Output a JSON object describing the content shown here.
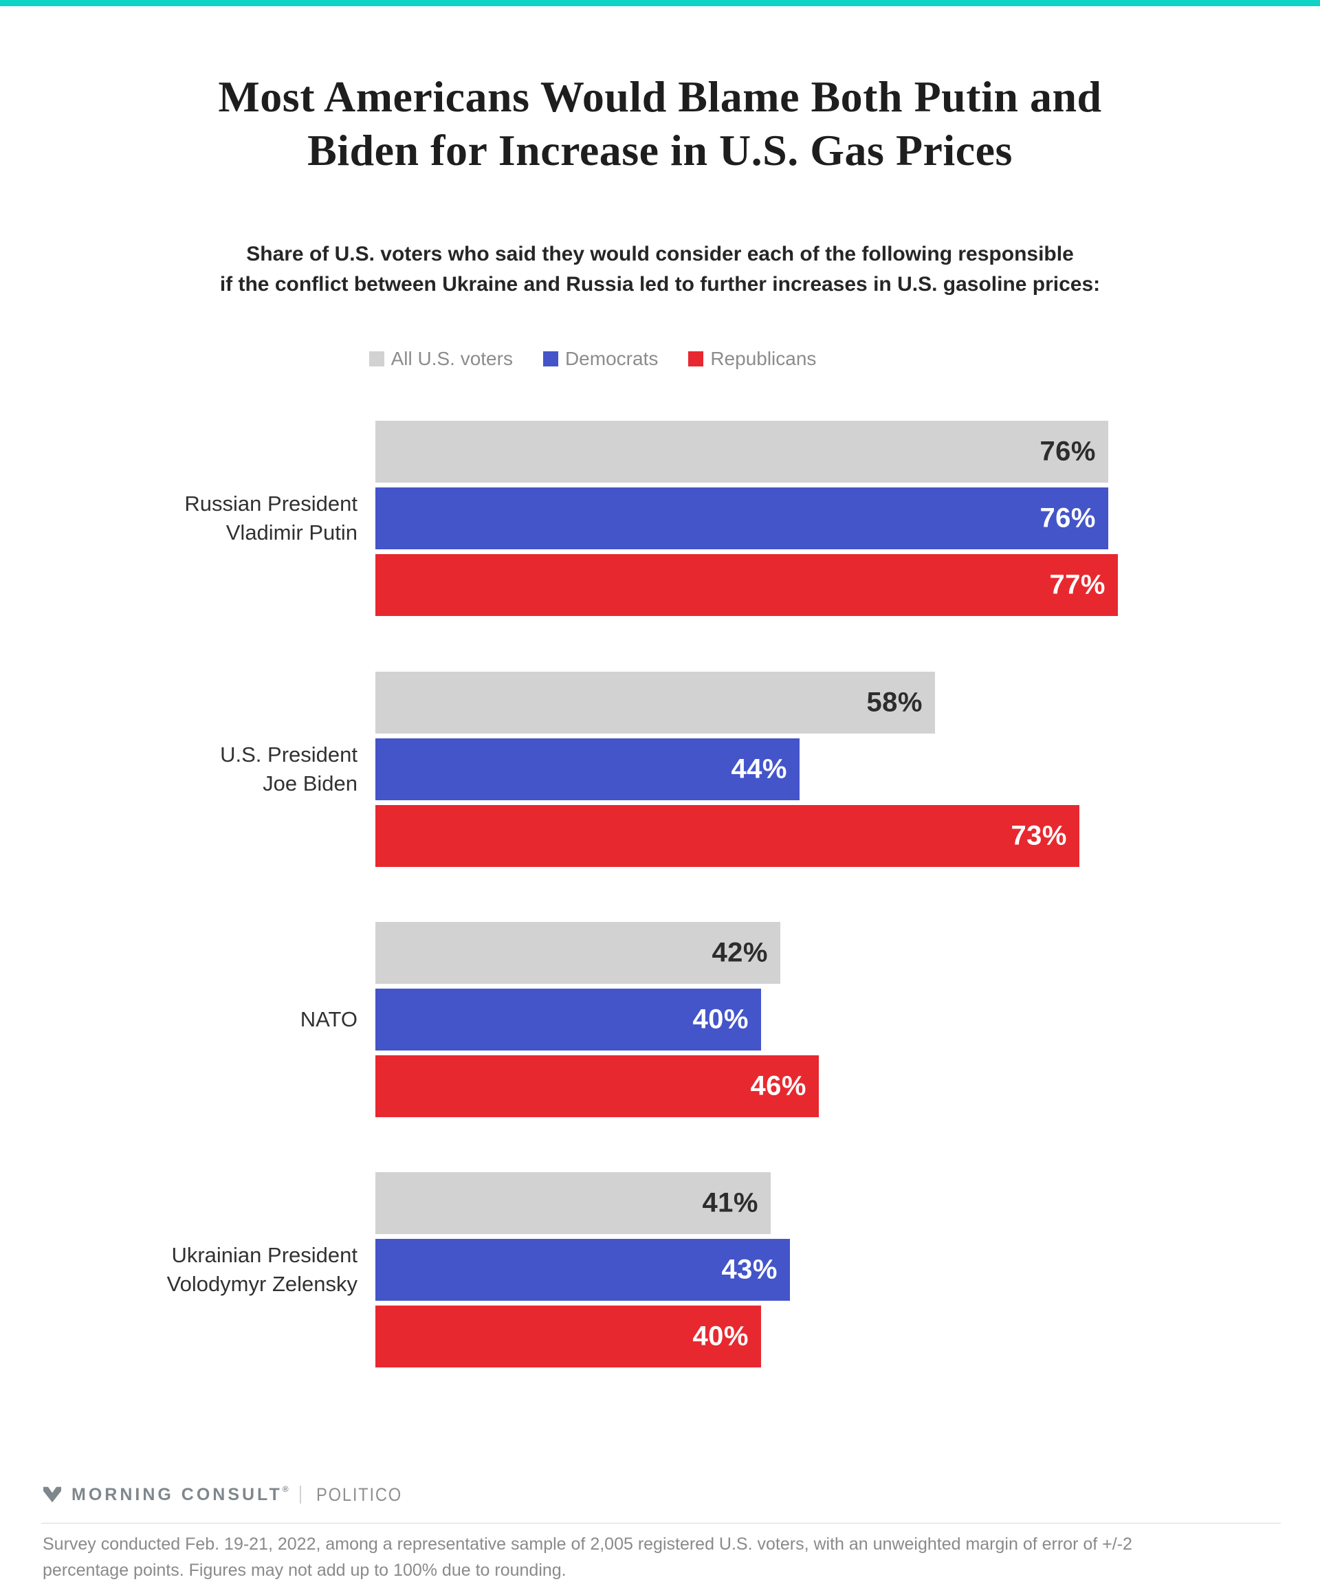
{
  "accent_color": "#0fd4c5",
  "title": "Most Americans Would Blame Both Putin and\nBiden for Increase in U.S. Gas Prices",
  "subtitle": "Share of U.S. voters who said they would consider each of the following responsible\nif the conflict between Ukraine and Russia led to further increases in U.S. gasoline prices:",
  "chart_data": {
    "type": "bar",
    "orientation": "horizontal",
    "unit": "%",
    "xlim": [
      0,
      80
    ],
    "grid": false,
    "legend_position": "top",
    "value_labels": "inside-end",
    "series": [
      {
        "name": "All U.S. voters",
        "color": "#d2d2d2",
        "label_color": "#2d2d2d"
      },
      {
        "name": "Democrats",
        "color": "#4355c9",
        "label_color": "#ffffff"
      },
      {
        "name": "Republicans",
        "color": "#e8282f",
        "label_color": "#ffffff"
      }
    ],
    "categories": [
      "Russian President\nVladimir Putin",
      "U.S. President\nJoe Biden",
      "NATO",
      "Ukrainian President\nVolodymyr Zelensky"
    ],
    "groups": [
      {
        "values": [
          76,
          76,
          77
        ]
      },
      {
        "values": [
          58,
          44,
          73
        ]
      },
      {
        "values": [
          42,
          40,
          46
        ]
      },
      {
        "values": [
          41,
          43,
          40
        ]
      }
    ]
  },
  "footer": {
    "brand_primary": "MORNING CONSULT",
    "brand_reg_mark": "®",
    "brand_secondary": "POLITICO",
    "footnote": "Survey conducted Feb. 19-21, 2022, among a representative sample of 2,005 registered U.S. voters, with an unweighted margin of error of +/-2\npercentage points. Figures may not add up to 100% due to rounding."
  }
}
